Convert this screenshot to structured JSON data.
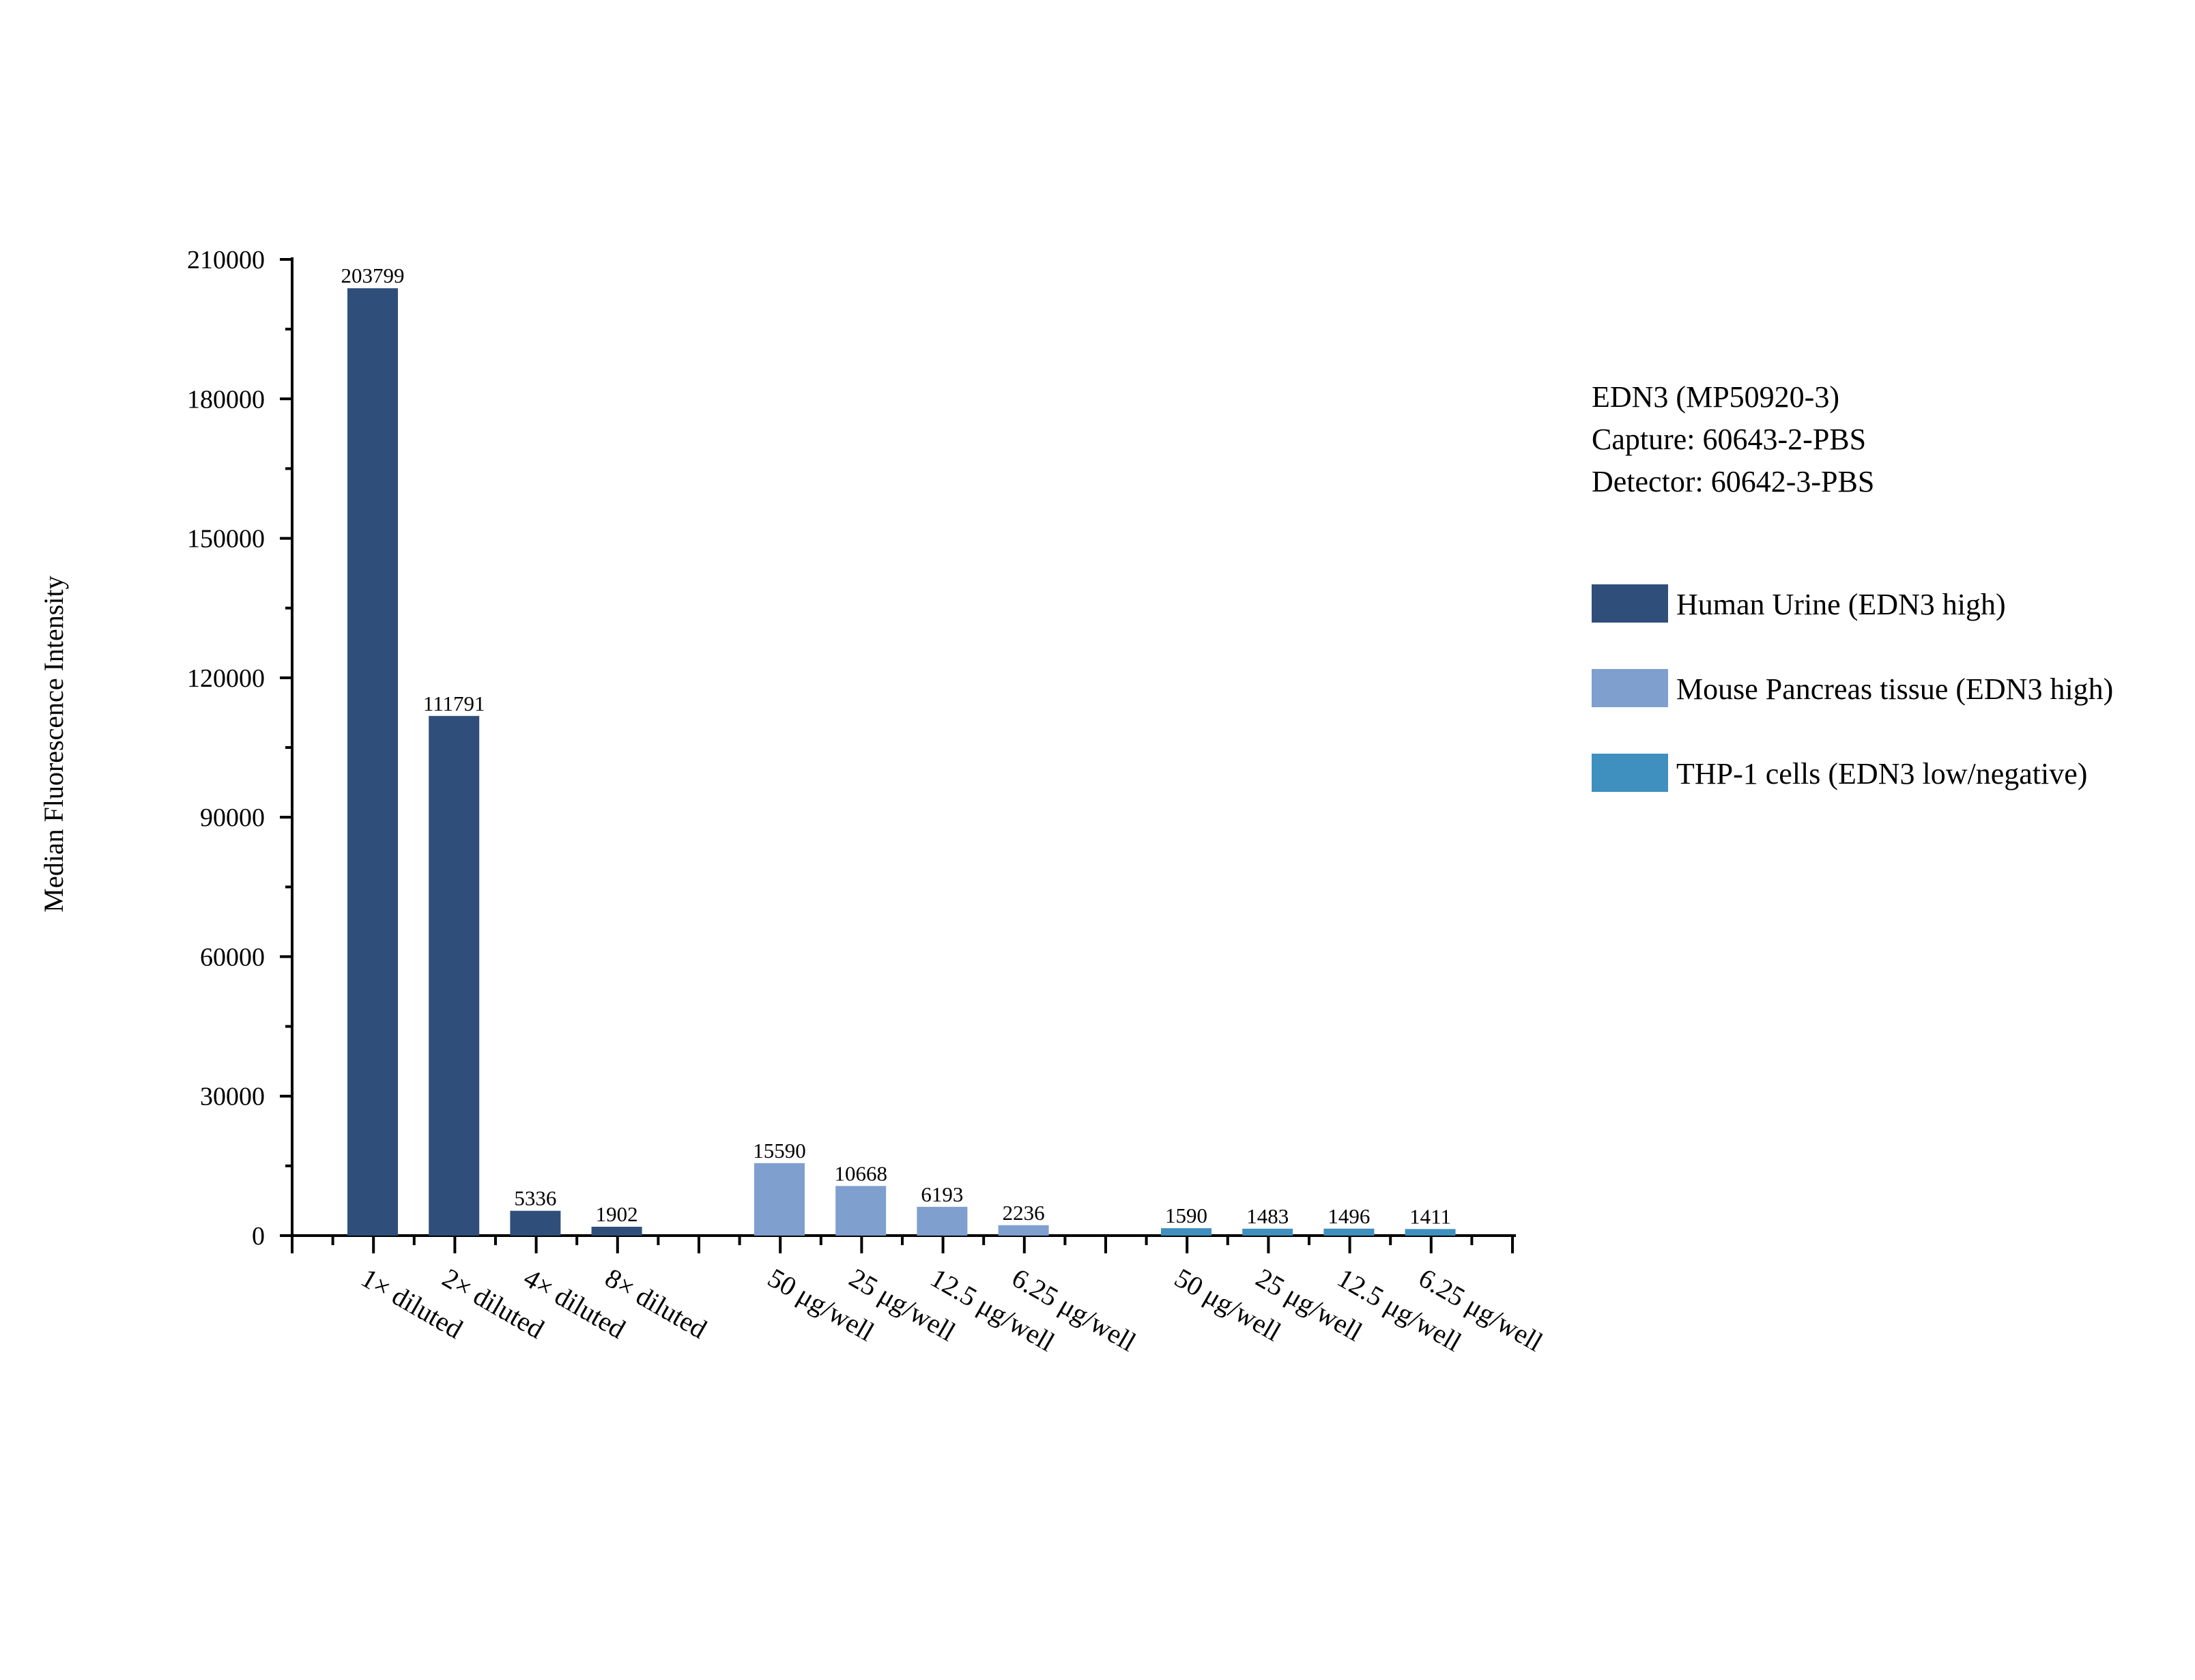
{
  "chart_data": {
    "type": "bar",
    "title": "",
    "xlabel": "",
    "ylabel": "Median Fluorescence Intensity",
    "ylim": [
      0,
      210000
    ],
    "yticks": [
      0,
      30000,
      60000,
      90000,
      120000,
      150000,
      180000,
      210000
    ],
    "grid": false,
    "legend_position": "right",
    "annotation_lines": [
      "EDN3 (MP50920-3)",
      "Capture: 60643-2-PBS",
      "Detector: 60642-3-PBS"
    ],
    "series": [
      {
        "name": "Human Urine (EDN3 high)",
        "color": "#2f4f7a",
        "categories": [
          "1× diluted",
          "2× diluted",
          "4× diluted",
          "8× diluted"
        ],
        "values": [
          203799,
          111791,
          5336,
          1902
        ]
      },
      {
        "name": "Mouse Pancreas tissue (EDN3 high)",
        "color": "#7f9fcf",
        "categories": [
          "50 μg/well",
          "25 μg/well",
          "12.5 μg/well",
          "6.25 μg/well"
        ],
        "values": [
          15590,
          10668,
          6193,
          2236
        ]
      },
      {
        "name": "THP-1 cells (EDN3 low/negative)",
        "color": "#3f8fbf",
        "categories": [
          "50 μg/well",
          "25 μg/well",
          "12.5 μg/well",
          "6.25 μg/well"
        ],
        "values": [
          1590,
          1483,
          1496,
          1411
        ]
      }
    ]
  }
}
